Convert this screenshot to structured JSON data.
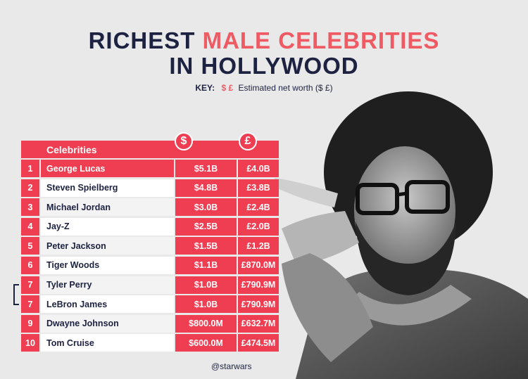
{
  "title": {
    "line1_part1": "RICHEST ",
    "line1_accent": "MALE CELEBRITIES",
    "line2": "IN HOLLYWOOD"
  },
  "key": {
    "label": "KEY:",
    "symbols": "$ £",
    "text": "Estimated net worth ($ £)"
  },
  "table": {
    "header": {
      "name": "Celebrities",
      "usd_icon": "$",
      "gbp_icon": "£"
    },
    "rows": [
      {
        "rank": "1",
        "name": "George Lucas",
        "usd": "$5.1B",
        "gbp": "£4.0B"
      },
      {
        "rank": "2",
        "name": "Steven Spielberg",
        "usd": "$4.8B",
        "gbp": "£3.8B"
      },
      {
        "rank": "3",
        "name": "Michael Jordan",
        "usd": "$3.0B",
        "gbp": "£2.4B"
      },
      {
        "rank": "4",
        "name": "Jay-Z",
        "usd": "$2.5B",
        "gbp": "£2.0B"
      },
      {
        "rank": "5",
        "name": "Peter Jackson",
        "usd": "$1.5B",
        "gbp": "£1.2B"
      },
      {
        "rank": "6",
        "name": "Tiger Woods",
        "usd": "$1.1B",
        "gbp": "£870.0M"
      },
      {
        "rank": "7",
        "name": "Tyler Perry",
        "usd": "$1.0B",
        "gbp": "£790.9M"
      },
      {
        "rank": "7",
        "name": "LeBron James",
        "usd": "$1.0B",
        "gbp": "£790.9M"
      },
      {
        "rank": "9",
        "name": "Dwayne Johnson",
        "usd": "$800.0M",
        "gbp": "£632.7M"
      },
      {
        "rank": "10",
        "name": "Tom Cruise",
        "usd": "$600.0M",
        "gbp": "£474.5M"
      }
    ]
  },
  "credit": "@starwars",
  "colors": {
    "accent": "#ef3e52",
    "navy": "#1d2240",
    "background": "#e9e9ea"
  }
}
